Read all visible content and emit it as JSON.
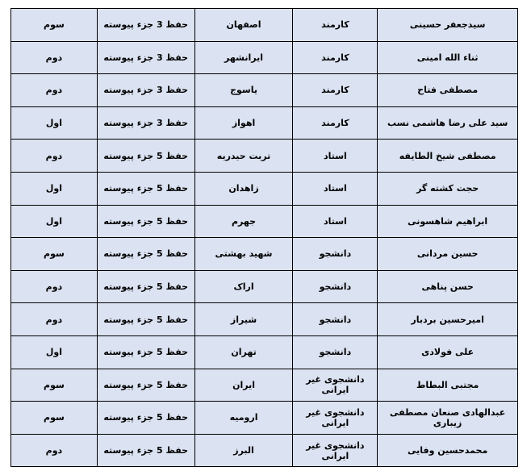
{
  "rows": [
    {
      "name": "سیدجعفر حسینی",
      "role": "کارمند",
      "city": "اصفهان",
      "category": "حفظ 3 جزء پیوسته",
      "rank": "سوم"
    },
    {
      "name": "ثناء الله امینی",
      "role": "کارمند",
      "city": "ایرانشهر",
      "category": "حفظ 3 جزء پیوسته",
      "rank": "دوم"
    },
    {
      "name": "مصطفی فتاح",
      "role": "کارمند",
      "city": "یاسوج",
      "category": "حفظ 3 جزء پیوسته",
      "rank": "دوم"
    },
    {
      "name": "سید علی رضا هاشمی نسب",
      "role": "کارمند",
      "city": "اهواز",
      "category": "حفظ 3 جزء پیوسته",
      "rank": "اول"
    },
    {
      "name": "مصطفی شیخ الطایفه",
      "role": "استاد",
      "city": "تربت حیدریه",
      "category": "حفظ 5 جزء پیوسته",
      "rank": "دوم"
    },
    {
      "name": "حجت کشته گر",
      "role": "استاد",
      "city": "زاهدان",
      "category": "حفظ 5 جزء پیوسته",
      "rank": "اول"
    },
    {
      "name": "ابراهیم شاهسونی",
      "role": "استاد",
      "city": "جهرم",
      "category": "حفظ 5 جزء پیوسته",
      "rank": "اول"
    },
    {
      "name": "حسین مردانی",
      "role": "دانشجو",
      "city": "شهید بهشتی",
      "category": "حفظ 5 جزء پیوسته",
      "rank": "سوم"
    },
    {
      "name": "حسن پناهی",
      "role": "دانشجو",
      "city": "اراک",
      "category": "حفظ 5 جزء پیوسته",
      "rank": "دوم"
    },
    {
      "name": "امیرحسین بردبار",
      "role": "دانشجو",
      "city": "شیراز",
      "category": "حفظ 5 جزء پیوسته",
      "rank": "دوم"
    },
    {
      "name": "علی فولادی",
      "role": "دانشجو",
      "city": "تهران",
      "category": "حفظ 5 جزء پیوسته",
      "rank": "اول"
    },
    {
      "name": "مجتبی البطاط",
      "role": "دانشجوی غیر ایرانی",
      "city": "ایران",
      "category": "حفظ 5 جزء پیوسته",
      "rank": "سوم"
    },
    {
      "name": "عبدالهادی صنعان مصطفی زیباری",
      "role": "دانشجوی غیر ایرانی",
      "city": "ارومیه",
      "category": "حفظ 5 جزء پیوسته",
      "rank": "سوم"
    },
    {
      "name": "محمدحسین وفایی",
      "role": "دانشجوی غیر ایرانی",
      "city": "البرز",
      "category": "حفظ 5 جزء پیوسته",
      "rank": "دوم"
    }
  ],
  "colors": {
    "cell_background": "#dbe2f1",
    "border": "#000000"
  }
}
